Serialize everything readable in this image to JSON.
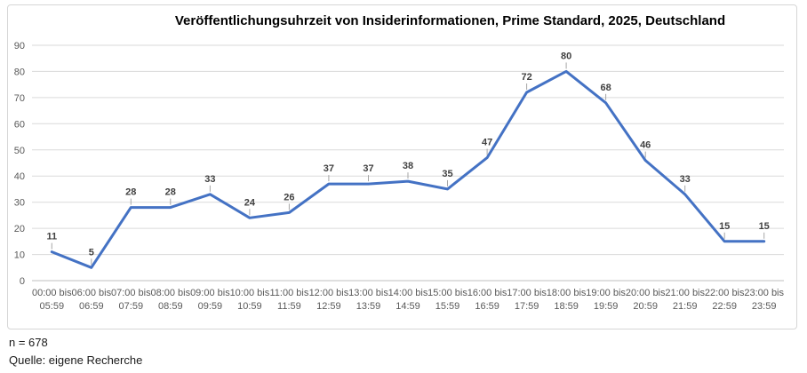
{
  "chart_data": {
    "type": "line",
    "title": "Veröffentlichungsuhrzeit von Insiderinformationen, Prime Standard, 2025, Deutschland",
    "categories": [
      "00:00 bis 05:59",
      "06:00 bis 06:59",
      "07:00 bis 07:59",
      "08:00 bis 08:59",
      "09:00 bis 09:59",
      "10:00 bis 10:59",
      "11:00 bis 11:59",
      "12:00 bis 12:59",
      "13:00 bis 13:59",
      "14:00 bis 14:59",
      "15:00 bis 15:59",
      "16:00 bis 16:59",
      "17:00 bis 17:59",
      "18:00 bis 18:59",
      "19:00 bis 19:59",
      "20:00 bis 20:59",
      "21:00 bis 21:59",
      "22:00 bis 22:59",
      "23:00 bis 23:59"
    ],
    "values": [
      11,
      5,
      28,
      28,
      33,
      24,
      26,
      37,
      37,
      38,
      35,
      47,
      72,
      80,
      68,
      46,
      33,
      15,
      15
    ],
    "xlabel": "",
    "ylabel": "",
    "ylim": [
      0,
      90
    ],
    "ytick_step": 10,
    "grid": "horizontal",
    "legend": "none",
    "data_labels": "above",
    "colors": {
      "line": "#4472C4",
      "gridline": "#dadada",
      "axis_line": "#bfbfbf",
      "leader_tick": "#a6a6a6",
      "axis_text": "#595959",
      "data_label_text": "#404040",
      "title_text": "#000000",
      "frame_border": "#d6d6d6"
    }
  },
  "footer": {
    "sample_size": "n = 678",
    "source": "Quelle: eigene Recherche"
  }
}
